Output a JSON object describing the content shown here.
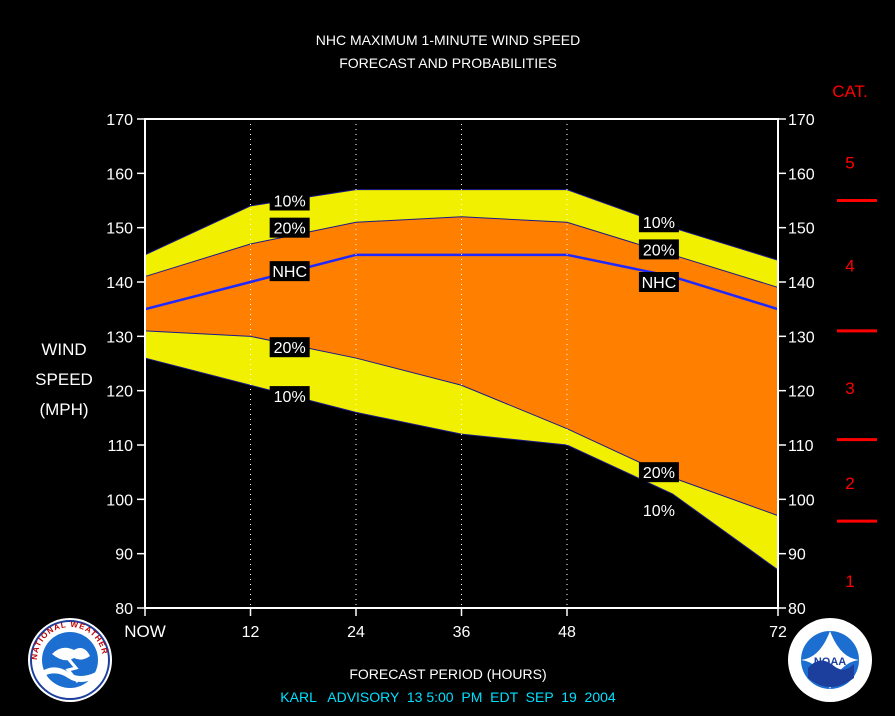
{
  "title_line1": "NHC MAXIMUM 1-MINUTE WIND SPEED",
  "title_line2": "FORECAST AND PROBABILITIES",
  "y_label": [
    "WIND",
    "SPEED",
    "(MPH)"
  ],
  "x_label": "FORECAST PERIOD (HOURS)",
  "advisory": "KARL   ADVISORY  13 5:00  PM  EDT  SEP  19  2004",
  "cat_header": "CAT.",
  "colors": {
    "background": "#000000",
    "plot_border": "#ffffff",
    "band_10": "#f0f000",
    "band_20": "#ff7f00",
    "nhc_line": "#1e28ff",
    "category": "#ff0000",
    "advisory_text": "#00e0ff",
    "label_box": "#000000"
  },
  "logos": {
    "left": "nws-logo",
    "left_text": "NATIONAL WEATHER SERVICE",
    "right": "noaa-logo",
    "right_text": "NOAA"
  },
  "chart_data": {
    "type": "area",
    "x_ticks": [
      {
        "value": 0,
        "label": "NOW"
      },
      {
        "value": 12,
        "label": "12"
      },
      {
        "value": 24,
        "label": "24"
      },
      {
        "value": 36,
        "label": "36"
      },
      {
        "value": 48,
        "label": "48"
      },
      {
        "value": 72,
        "label": "72"
      }
    ],
    "xlim": [
      0,
      72
    ],
    "ylim": [
      80,
      170
    ],
    "y_ticks": [
      80,
      90,
      100,
      110,
      120,
      130,
      140,
      150,
      160,
      170
    ],
    "grid_x": [
      12,
      24,
      36,
      48
    ],
    "x": [
      0,
      12,
      24,
      36,
      48,
      60,
      72
    ],
    "series": [
      {
        "name": "10%",
        "values": [
          145,
          154,
          157,
          157,
          157,
          150,
          144
        ]
      },
      {
        "name": "20%",
        "values": [
          141,
          147,
          151,
          152,
          151,
          145,
          139
        ]
      },
      {
        "name": "NHC",
        "values": [
          135,
          140,
          145,
          145,
          145,
          141,
          135
        ]
      },
      {
        "name": "20%",
        "values": [
          131,
          130,
          126,
          121,
          113,
          104,
          97
        ]
      },
      {
        "name": "10%",
        "values": [
          126,
          121,
          116,
          112,
          110,
          101,
          87
        ]
      }
    ],
    "inline_labels": [
      {
        "text": "10%",
        "x": 16,
        "y": 155
      },
      {
        "text": "20%",
        "x": 16,
        "y": 150
      },
      {
        "text": "NHC",
        "x": 16,
        "y": 142
      },
      {
        "text": "20%",
        "x": 16,
        "y": 128
      },
      {
        "text": "10%",
        "x": 16,
        "y": 119
      },
      {
        "text": "10%",
        "x": 58,
        "y": 151
      },
      {
        "text": "20%",
        "x": 58,
        "y": 146
      },
      {
        "text": "NHC",
        "x": 58,
        "y": 140
      },
      {
        "text": "20%",
        "x": 58,
        "y": 105
      },
      {
        "text": "10%",
        "x": 58,
        "y": 98
      }
    ],
    "categories": [
      {
        "label": "5",
        "mid": 162
      },
      {
        "label": "4",
        "mid": 143
      },
      {
        "label": "3",
        "mid": 120.5
      },
      {
        "label": "2",
        "mid": 103
      },
      {
        "label": "1",
        "mid": 85
      }
    ],
    "category_boundaries": [
      155,
      131,
      111,
      96
    ]
  }
}
